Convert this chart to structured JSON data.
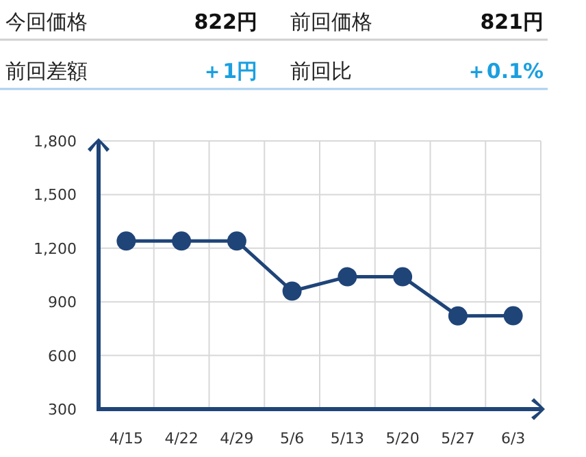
{
  "chart_data": [
    {
      "type": "other",
      "annotations": [
        "今回価格",
        "822円",
        "前回価格",
        "821円",
        "前回差額",
        "＋1円",
        "前回比",
        "＋0.1%"
      ]
    },
    {
      "type": "line",
      "categories": [
        "4/15",
        "4/22",
        "4/29",
        "5/6",
        "5/13",
        "5/20",
        "5/27",
        "6/3"
      ],
      "series": [
        {
          "color": "#1f4478",
          "values": [
            1240,
            1240,
            1240,
            960,
            1040,
            1040,
            821,
            822
          ]
        }
      ],
      "ylim": [
        300,
        1800
      ],
      "yticks": [
        {
          "value": 300,
          "label": "300"
        },
        {
          "value": 600,
          "label": "600"
        },
        {
          "value": 900,
          "label": "900"
        },
        {
          "value": 1200,
          "label": "1,200"
        },
        {
          "value": 1500,
          "label": "1,500"
        },
        {
          "value": 1800,
          "label": "1,800"
        }
      ],
      "grid": true,
      "marker": "circle",
      "line_style": "solid"
    }
  ]
}
